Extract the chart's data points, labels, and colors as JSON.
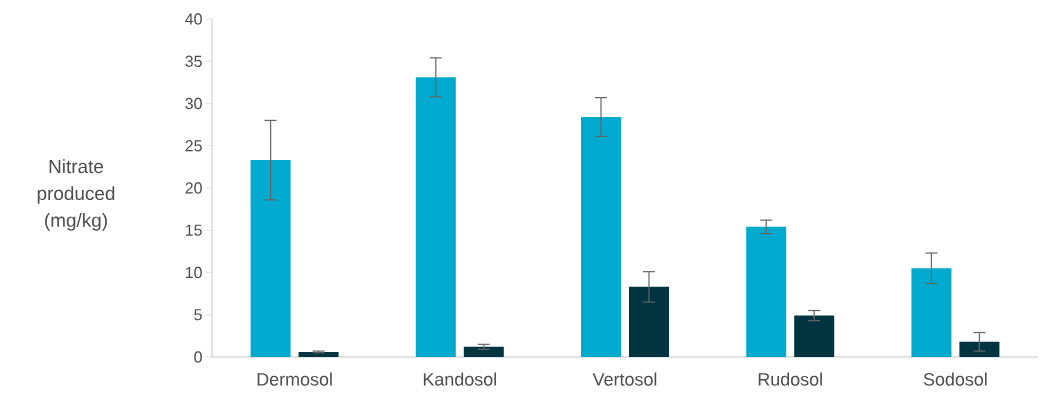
{
  "chart_data": {
    "type": "bar",
    "ylabel": "Nitrate produced (mg/kg)",
    "categories": [
      "Dermosol",
      "Kandosol",
      "Vertosol",
      "Rudosol",
      "Sodosol"
    ],
    "series": [
      {
        "color": "#00a9ce",
        "values": [
          23.3,
          33.1,
          28.4,
          15.4,
          10.5
        ],
        "errors": [
          4.7,
          2.3,
          2.3,
          0.8,
          1.8
        ]
      },
      {
        "color": "#003440",
        "values": [
          0.6,
          1.2,
          8.3,
          4.9,
          1.8
        ],
        "errors": [
          0.1,
          0.3,
          1.8,
          0.6,
          1.1
        ]
      }
    ],
    "ylim": [
      0,
      40
    ],
    "yticks": [
      0,
      5,
      10,
      15,
      20,
      25,
      30,
      35,
      40
    ]
  }
}
